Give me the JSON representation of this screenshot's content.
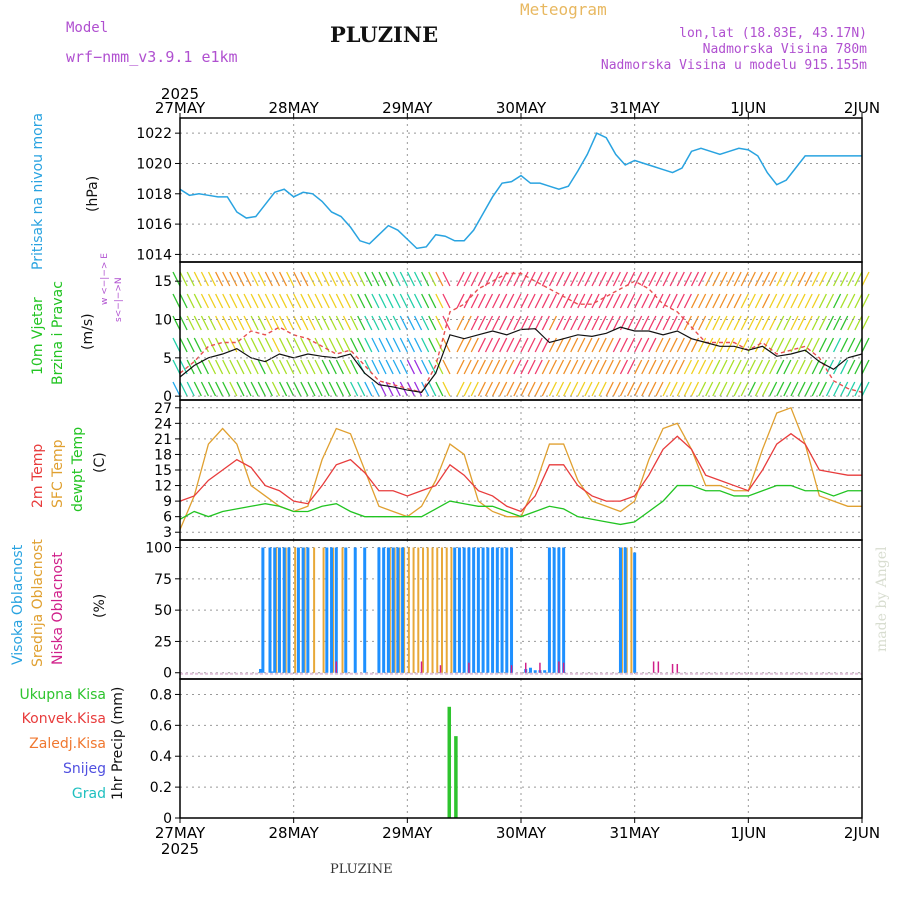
{
  "header": {
    "model_label": "Model",
    "model_name": "wrf−nmm_v3.9.1 e1km",
    "meteogram_label": "Meteogram",
    "station": "PLUZINE",
    "lonlat": "lon,lat (18.83E, 43.17N)",
    "elevation": "Nadmorska Visina 780m",
    "model_elevation": "Nadmorska Visina u modelu 915.155m",
    "footer_station": "PLUZINE",
    "watermark": "made by Angel"
  },
  "time_axis": {
    "year": "2025",
    "ticks": [
      "27MAY",
      "28MAY",
      "29MAY",
      "30MAY",
      "31MAY",
      "1JUN",
      "2JUN"
    ],
    "hours_total": 144
  },
  "panel_labels": {
    "pressure": [
      "Pritisak na nivou mora",
      "(hPa)"
    ],
    "wind": [
      "10m Vjetar",
      "Brzina i Pravac",
      "(m/s)"
    ],
    "wind_dir_legend": [
      "w <−|−> E",
      "s<−|−>N"
    ],
    "temp": [
      "2m Temp",
      "SFC Temp",
      "dewpt Temp",
      "(C)"
    ],
    "cloud": [
      "Visoka Oblacnost",
      "Srednja Oblacnost",
      "Niska Oblacnost",
      "(%)"
    ],
    "precip_legend": [
      "Ukupna Kisa",
      "Konvek.Kisa",
      "Zaledj.Kisa",
      "Snijeg",
      "Grad"
    ],
    "precip_unit": "1hr Precip (mm)"
  },
  "colors": {
    "pressure": "#29a3e0",
    "temp2m": "#e83c3c",
    "sfc": "#e0a030",
    "dewpt": "#22c422",
    "high_cloud": "#1e90ff",
    "mid_cloud": "#e8a838",
    "low_cloud": "#d0208a",
    "precip": "#2ec42e",
    "conv": "#e83c3c",
    "frozen": "#f07830",
    "snow": "#5050e0",
    "hail": "#20c0c0",
    "model_label": "#b050d0",
    "meteogram_label": "#e8b860"
  },
  "chart_data": [
    {
      "type": "line",
      "name": "pressure",
      "ylim": [
        1013.5,
        1023
      ],
      "yticks": [
        1014,
        1016,
        1018,
        1020,
        1022
      ],
      "x": [
        0,
        2,
        4,
        6,
        8,
        10,
        12,
        14,
        16,
        18,
        20,
        22,
        24,
        26,
        28,
        30,
        32,
        34,
        36,
        38,
        40,
        42,
        44,
        46,
        48,
        50,
        52,
        54,
        56,
        58,
        60,
        62,
        64,
        66,
        68,
        70,
        72,
        74,
        76,
        78,
        80,
        82,
        84,
        86,
        88,
        90,
        92,
        94,
        96,
        98,
        100,
        102,
        104,
        106,
        108,
        110,
        112,
        114,
        116,
        118,
        120,
        122,
        124,
        126,
        128,
        130,
        132,
        134,
        136,
        138,
        140,
        142,
        144
      ],
      "values": [
        1018.3,
        1017.9,
        1018.0,
        1017.9,
        1017.8,
        1017.8,
        1016.8,
        1016.4,
        1016.5,
        1017.3,
        1018.1,
        1018.3,
        1017.8,
        1018.1,
        1018.0,
        1017.5,
        1016.8,
        1016.5,
        1015.8,
        1014.9,
        1014.7,
        1015.3,
        1015.9,
        1015.6,
        1015.0,
        1014.4,
        1014.5,
        1015.3,
        1015.2,
        1014.9,
        1014.9,
        1015.6,
        1016.7,
        1017.8,
        1018.7,
        1018.8,
        1019.2,
        1018.7,
        1018.7,
        1018.5,
        1018.3,
        1018.5,
        1019.5,
        1020.6,
        1022.0,
        1021.7,
        1020.6,
        1019.9,
        1020.2,
        1020.0,
        1019.8,
        1019.6,
        1019.4,
        1019.7,
        1020.8,
        1021.0,
        1020.8,
        1020.6,
        1020.8,
        1021.0,
        1020.9,
        1020.5,
        1019.4,
        1018.6,
        1018.9,
        1019.7,
        1020.5,
        1020.5,
        1020.5,
        1020.5,
        1020.5,
        1020.5,
        1020.5
      ]
    },
    {
      "type": "line",
      "name": "wind",
      "ylim": [
        -0.5,
        17.5
      ],
      "yticks": [
        0,
        5,
        10,
        15
      ],
      "x": [
        0,
        3,
        6,
        9,
        12,
        15,
        18,
        21,
        24,
        27,
        30,
        33,
        36,
        39,
        42,
        45,
        48,
        51,
        54,
        57,
        60,
        63,
        66,
        69,
        72,
        75,
        78,
        81,
        84,
        87,
        90,
        93,
        96,
        99,
        102,
        105,
        108,
        111,
        114,
        117,
        120,
        123,
        126,
        129,
        132,
        135,
        138,
        141,
        144
      ],
      "speed": [
        2.5,
        4,
        5,
        5.5,
        6.2,
        5,
        4.5,
        5.5,
        5,
        5.5,
        5.2,
        5,
        5.5,
        3,
        1.5,
        1.2,
        0.8,
        0.5,
        3,
        8,
        7.5,
        8,
        8.5,
        8,
        8.7,
        8.8,
        7,
        7.5,
        8,
        7.8,
        8.2,
        9,
        8.5,
        8.5,
        8,
        8.5,
        7.5,
        7,
        6.5,
        6.5,
        6,
        6.5,
        5.2,
        5.5,
        6,
        4.5,
        3.5,
        5,
        5.5
      ],
      "gust": [
        3,
        4.5,
        6.5,
        7,
        7,
        8.5,
        8,
        9,
        8,
        7.5,
        6.5,
        5.5,
        6,
        4,
        2,
        1.5,
        1,
        0.5,
        4,
        11,
        12,
        14,
        15,
        16,
        16,
        15,
        14,
        13,
        12,
        12,
        13,
        14,
        15,
        14,
        12,
        11,
        9,
        7,
        7,
        7,
        6,
        7,
        5.5,
        6,
        6.5,
        5,
        2,
        1,
        0.5
      ]
    },
    {
      "type": "line",
      "name": "temperature",
      "ylim": [
        1.5,
        28.5
      ],
      "yticks": [
        3,
        6,
        9,
        12,
        15,
        18,
        21,
        24,
        27
      ],
      "x": [
        0,
        3,
        6,
        9,
        12,
        15,
        18,
        21,
        24,
        27,
        30,
        33,
        36,
        39,
        42,
        45,
        48,
        51,
        54,
        57,
        60,
        63,
        66,
        69,
        72,
        75,
        78,
        81,
        84,
        87,
        90,
        93,
        96,
        99,
        102,
        105,
        108,
        111,
        114,
        117,
        120,
        123,
        126,
        129,
        132,
        135,
        138,
        141,
        144
      ],
      "t2m": [
        9,
        10,
        13,
        15,
        17,
        15.5,
        12,
        11,
        9,
        8.5,
        12,
        16,
        17,
        14.5,
        11,
        11,
        10,
        11,
        12,
        16,
        14,
        11,
        10,
        8,
        7,
        10,
        16,
        16,
        12,
        10,
        9,
        9,
        10,
        14,
        19,
        21.5,
        19,
        14,
        13,
        12,
        11,
        15,
        20,
        22,
        20,
        15,
        14.5,
        14,
        14
      ],
      "sfc": [
        3.5,
        10,
        20,
        23,
        20,
        12,
        10,
        8,
        7,
        8,
        17,
        23,
        22,
        15,
        8,
        7,
        6,
        8,
        13,
        20,
        18,
        9,
        7,
        6,
        6,
        12,
        20,
        20,
        13,
        9,
        8,
        7,
        9,
        17,
        23,
        24,
        19,
        12,
        12,
        11,
        11,
        19,
        26,
        27,
        20,
        10,
        9,
        8,
        8
      ],
      "dewpt": [
        5.5,
        7,
        6,
        7,
        7.5,
        8,
        8.5,
        8,
        7,
        7,
        8,
        8.5,
        7,
        6,
        6,
        6,
        6,
        6,
        7.5,
        9,
        8.5,
        8,
        8,
        7,
        6,
        7,
        8,
        7.5,
        6,
        5.5,
        5,
        4.5,
        5,
        7,
        9,
        12,
        12,
        11,
        11,
        10,
        10,
        11,
        12,
        12,
        11,
        11,
        10,
        11,
        11
      ]
    },
    {
      "type": "bar",
      "name": "cloud_cover",
      "ylim": [
        -5,
        106
      ],
      "yticks": [
        0,
        25,
        50,
        75,
        100
      ],
      "high": {
        "x": [
          17,
          17.5,
          19,
          19.5,
          20,
          21,
          22,
          23,
          25,
          26,
          27,
          31,
          32,
          33,
          35,
          37,
          39,
          42,
          43,
          44,
          45,
          46,
          47,
          58,
          59,
          60,
          61,
          62,
          63,
          64,
          65,
          66,
          67,
          68,
          69,
          70,
          73,
          74,
          75,
          76,
          77,
          78,
          79,
          80,
          81,
          93,
          94,
          96
        ],
        "values": [
          3,
          100,
          100,
          1,
          100,
          100,
          100,
          100,
          100,
          100,
          100,
          100,
          100,
          100,
          100,
          100,
          100,
          100,
          100,
          100,
          100,
          100,
          100,
          100,
          100,
          100,
          100,
          100,
          100,
          100,
          100,
          100,
          100,
          100,
          100,
          100,
          3,
          4,
          2,
          2,
          2,
          100,
          100,
          100,
          100,
          100,
          100,
          96
        ]
      },
      "mid": {
        "x": [
          17,
          20,
          22,
          24,
          26,
          28,
          30,
          32,
          34,
          44,
          45,
          46,
          47,
          48,
          49,
          50,
          51,
          52,
          53,
          54,
          55,
          56,
          57,
          93,
          94,
          95
        ],
        "values": [
          0,
          100,
          100,
          100,
          100,
          100,
          100,
          100,
          100,
          100,
          100,
          100,
          100,
          100,
          100,
          100,
          100,
          100,
          100,
          100,
          100,
          100,
          100,
          100,
          100,
          100
        ]
      },
      "low": {
        "x": [
          33,
          51,
          55,
          61,
          70,
          73,
          76,
          80,
          81,
          100,
          101,
          104,
          105
        ],
        "values": [
          9,
          9,
          6,
          8,
          6,
          8,
          8,
          9,
          8,
          9,
          9,
          7,
          7
        ]
      }
    },
    {
      "type": "bar",
      "name": "precipitation_1hr",
      "ylim": [
        0,
        0.9
      ],
      "yticks": [
        0,
        0.2,
        0.4,
        0.6,
        0.8
      ],
      "x": [
        56.8,
        58.2
      ],
      "values": [
        0.72,
        0.53
      ]
    }
  ]
}
